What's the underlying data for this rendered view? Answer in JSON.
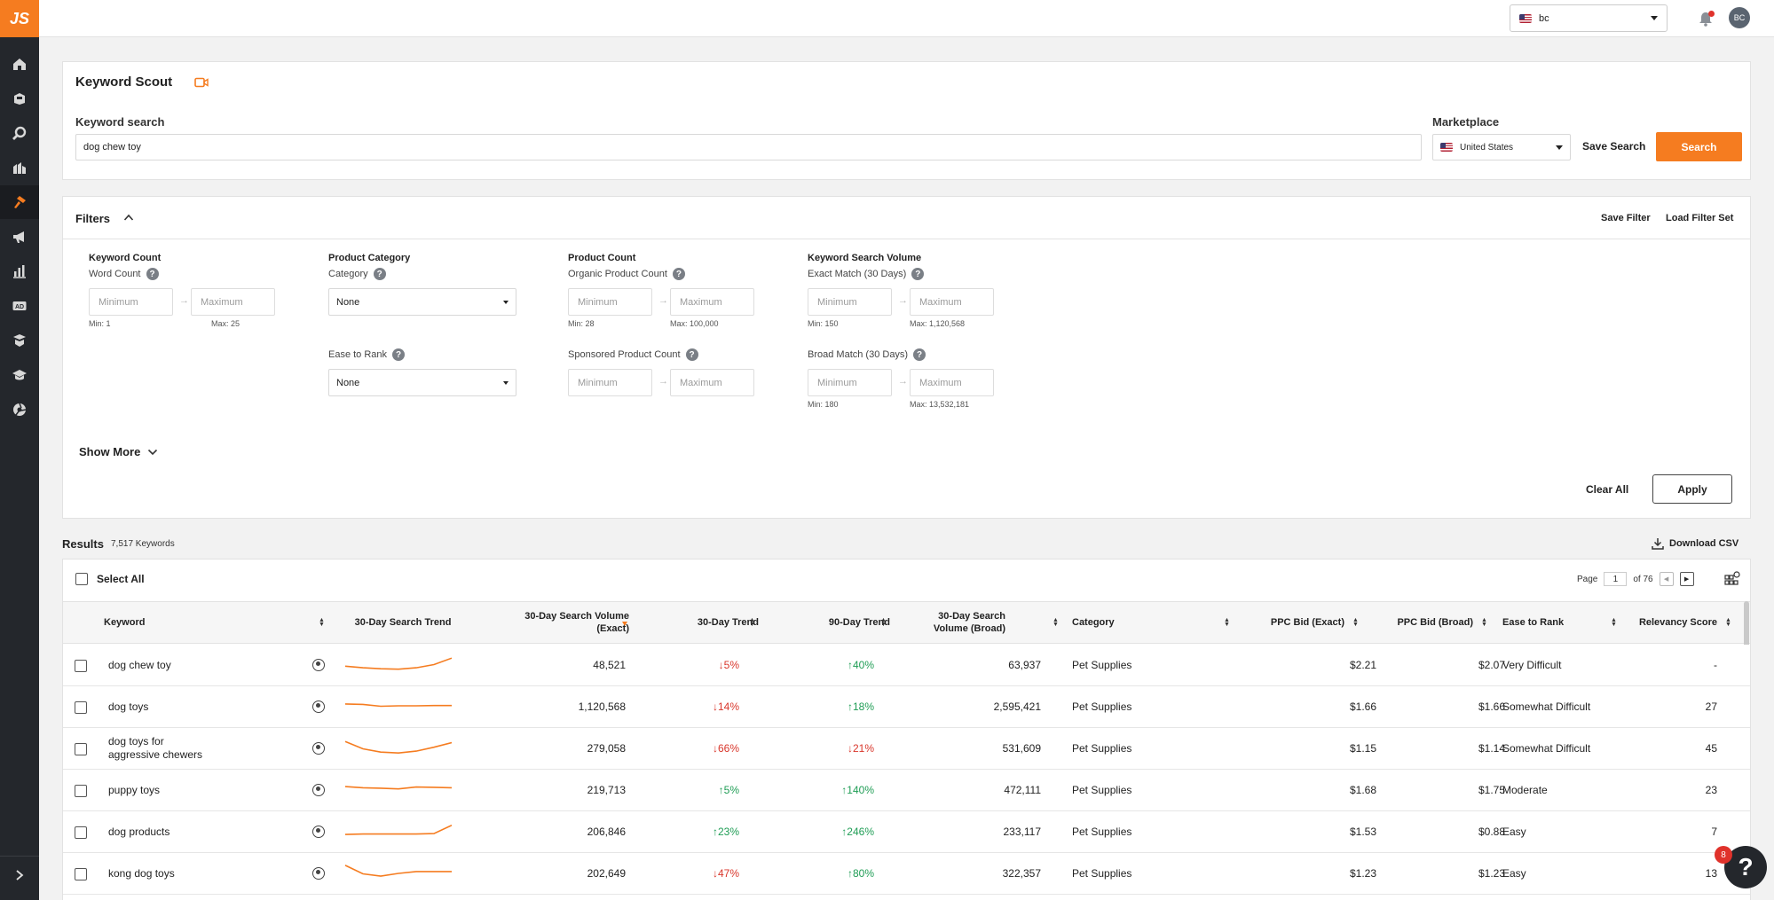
{
  "app": {
    "logo": "JS"
  },
  "sidebar": {
    "items": [
      {
        "icon": "home-icon"
      },
      {
        "icon": "product-box-icon"
      },
      {
        "icon": "search-icon"
      },
      {
        "icon": "database-icon"
      },
      {
        "icon": "keyword-hammer-icon",
        "active": true
      },
      {
        "icon": "megaphone-icon"
      },
      {
        "icon": "bar-chart-icon"
      },
      {
        "icon": "ad-icon"
      },
      {
        "icon": "academy-icon"
      },
      {
        "icon": "graduation-cap-icon"
      },
      {
        "icon": "extension-icon"
      }
    ],
    "expand_icon": "chevron-right-icon"
  },
  "topbar": {
    "account": "bc",
    "avatar": "BC"
  },
  "search": {
    "title": "Keyword Scout",
    "keyword_label": "Keyword search",
    "keyword_value": "dog chew toy",
    "marketplace_label": "Marketplace",
    "marketplace_value": "United States",
    "save_search": "Save Search",
    "search_button": "Search"
  },
  "filters": {
    "title": "Filters",
    "save_filter": "Save Filter",
    "load_filter_set": "Load Filter Set",
    "keyword_count": {
      "title": "Keyword Count",
      "word_count": "Word Count",
      "min_placeholder": "Minimum",
      "max_placeholder": "Maximum",
      "min_hint": "Min: 1",
      "max_hint": "Max: 25"
    },
    "product_category": {
      "title": "Product Category",
      "category_label": "Category",
      "category_value": "None",
      "ease_label": "Ease to Rank",
      "ease_value": "None"
    },
    "product_count": {
      "title": "Product Count",
      "organic_label": "Organic Product Count",
      "organic_min_hint": "Min: 28",
      "organic_max_hint": "Max: 100,000",
      "sponsored_label": "Sponsored Product Count",
      "min_placeholder": "Minimum",
      "max_placeholder": "Maximum"
    },
    "search_volume": {
      "title": "Keyword Search Volume",
      "exact_label": "Exact Match (30 Days)",
      "exact_min_hint": "Min: 150",
      "exact_max_hint": "Max: 1,120,568",
      "broad_label": "Broad Match (30 Days)",
      "broad_min_hint": "Min: 180",
      "broad_max_hint": "Max: 13,532,181",
      "min_placeholder": "Minimum",
      "max_placeholder": "Maximum"
    },
    "show_more": "Show More",
    "clear_all": "Clear All",
    "apply": "Apply"
  },
  "results": {
    "title": "Results",
    "count": "7,517 Keywords",
    "download": "Download CSV",
    "select_all": "Select All",
    "page_label": "Page",
    "page_value": "1",
    "page_of": "of 76",
    "columns": {
      "keyword": "Keyword",
      "trend": "30-Day Search Trend",
      "volume_exact": "30-Day Search Volume (Exact)",
      "trend30": "30-Day Trend",
      "trend90": "90-Day Trend",
      "volume_broad": "30-Day Search Volume (Broad)",
      "category": "Category",
      "ppc_exact": "PPC Bid (Exact)",
      "ppc_broad": "PPC Bid (Broad)",
      "ease": "Ease to Rank",
      "relevancy": "Relevancy Score"
    },
    "rows": [
      {
        "keyword": "dog chew toy",
        "volume_exact": "48,521",
        "trend30": "5%",
        "trend30_dir": "down",
        "trend90": "40%",
        "trend90_dir": "up",
        "volume_broad": "63,937",
        "category": "Pet Supplies",
        "ppc_exact": "$2.21",
        "ppc_broad": "$2.07",
        "ease": "Very Difficult",
        "relevancy": "-",
        "spark": [
          0.55,
          0.62,
          0.66,
          0.68,
          0.62,
          0.48,
          0.2
        ]
      },
      {
        "keyword": "dog toys",
        "volume_exact": "1,120,568",
        "trend30": "14%",
        "trend30_dir": "down",
        "trend90": "18%",
        "trend90_dir": "up",
        "volume_broad": "2,595,421",
        "category": "Pet Supplies",
        "ppc_exact": "$1.66",
        "ppc_broad": "$1.66",
        "ease": "Somewhat Difficult",
        "relevancy": "27",
        "spark": [
          0.38,
          0.4,
          0.48,
          0.46,
          0.46,
          0.45,
          0.45
        ]
      },
      {
        "keyword": "dog toys for aggressive chewers",
        "volume_exact": "279,058",
        "trend30": "66%",
        "trend30_dir": "down",
        "trend90": "21%",
        "trend90_dir": "down",
        "volume_broad": "531,609",
        "category": "Pet Supplies",
        "ppc_exact": "$1.15",
        "ppc_broad": "$1.14",
        "ease": "Somewhat Difficult",
        "relevancy": "45",
        "spark": [
          0.2,
          0.52,
          0.66,
          0.7,
          0.62,
          0.45,
          0.25
        ]
      },
      {
        "keyword": "puppy toys",
        "volume_exact": "219,713",
        "trend30": "5%",
        "trend30_dir": "up",
        "trend90": "140%",
        "trend90_dir": "up",
        "volume_broad": "472,111",
        "category": "Pet Supplies",
        "ppc_exact": "$1.68",
        "ppc_broad": "$1.75",
        "ease": "Moderate",
        "relevancy": "23",
        "spark": [
          0.35,
          0.4,
          0.42,
          0.45,
          0.37,
          0.38,
          0.4
        ]
      },
      {
        "keyword": "dog products",
        "volume_exact": "206,846",
        "trend30": "23%",
        "trend30_dir": "up",
        "trend90": "246%",
        "trend90_dir": "up",
        "volume_broad": "233,117",
        "category": "Pet Supplies",
        "ppc_exact": "$1.53",
        "ppc_broad": "$0.88",
        "ease": "Easy",
        "relevancy": "7",
        "spark": [
          0.62,
          0.6,
          0.6,
          0.6,
          0.6,
          0.58,
          0.22
        ]
      },
      {
        "keyword": "kong dog toys",
        "volume_exact": "202,649",
        "trend30": "47%",
        "trend30_dir": "down",
        "trend90": "80%",
        "trend90_dir": "up",
        "volume_broad": "322,357",
        "category": "Pet Supplies",
        "ppc_exact": "$1.23",
        "ppc_broad": "$1.23",
        "ease": "Easy",
        "relevancy": "13",
        "spark": [
          0.15,
          0.52,
          0.62,
          0.5,
          0.42,
          0.42,
          0.42
        ]
      }
    ]
  },
  "help": {
    "label": "?",
    "badge": "8"
  },
  "colors": {
    "accent": "#f57c20",
    "sidebar": "#24272c",
    "up": "#1f9d55",
    "down": "#d9362b"
  }
}
